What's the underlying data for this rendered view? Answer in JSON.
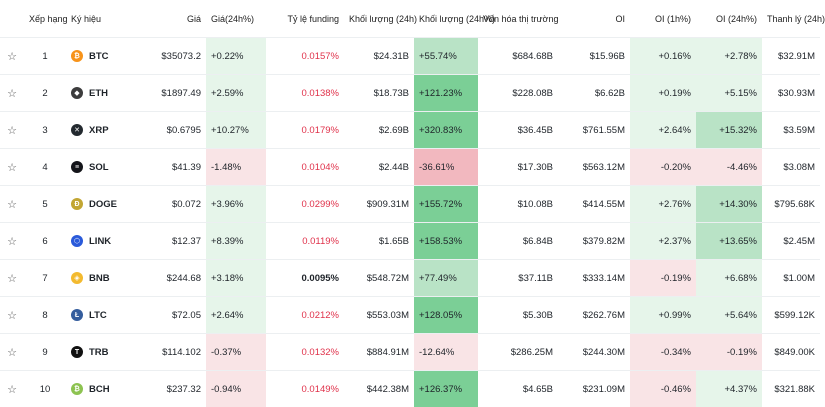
{
  "headers": {
    "star": "",
    "rank": "Xếp hạng",
    "symbol": "Ký hiệu",
    "price": "Giá",
    "price_change": "Giá(24h%)",
    "funding": "Tỷ lệ funding",
    "volume": "Khối lượng (24h)",
    "volume_change": "Khối lượng (24h%)",
    "market_cap": "Vốn hóa thị trường",
    "oi": "OI",
    "oi_1h": "OI (1h%)",
    "oi_24h": "OI (24h%)",
    "liquidation": "Thanh lý (24h)"
  },
  "colors": {
    "green_light": "#e6f5ea",
    "green_medium": "#b9e3c6",
    "green_strong": "#7bcf96",
    "red_light": "#f9e4e6",
    "red_strong": "#f2b8bf",
    "negative_text": "#e0324b"
  },
  "rows": [
    {
      "star": "☆",
      "rank": "1",
      "symbol": "BTC",
      "icon": "btc-icon",
      "icon_color": "#f7931a",
      "icon_glyph": "₿",
      "price": "$35073.2",
      "price_change": "+0.22%",
      "price_tone": "green_light",
      "funding": "0.0157%",
      "funding_tone": "red",
      "volume": "$24.31B",
      "volume_change": "+55.74%",
      "volume_tone": "green_medium",
      "market_cap": "$684.68B",
      "oi": "$15.96B",
      "oi_1h": "+0.16%",
      "oi_1h_tone": "green_light",
      "oi_24h": "+2.78%",
      "oi_24h_tone": "green_light",
      "liquidation": "$32.91M"
    },
    {
      "star": "☆",
      "rank": "2",
      "symbol": "ETH",
      "icon": "eth-icon",
      "icon_color": "#3c3c3d",
      "icon_glyph": "◆",
      "price": "$1897.49",
      "price_change": "+2.59%",
      "price_tone": "green_light",
      "funding": "0.0138%",
      "funding_tone": "red",
      "volume": "$18.73B",
      "volume_change": "+121.23%",
      "volume_tone": "green_strong",
      "market_cap": "$228.08B",
      "oi": "$6.62B",
      "oi_1h": "+0.19%",
      "oi_1h_tone": "green_light",
      "oi_24h": "+5.15%",
      "oi_24h_tone": "green_light",
      "liquidation": "$30.93M"
    },
    {
      "star": "☆",
      "rank": "3",
      "symbol": "XRP",
      "icon": "xrp-icon",
      "icon_color": "#23292f",
      "icon_glyph": "✕",
      "price": "$0.6795",
      "price_change": "+10.27%",
      "price_tone": "green_light",
      "funding": "0.0179%",
      "funding_tone": "red",
      "volume": "$2.69B",
      "volume_change": "+320.83%",
      "volume_tone": "green_strong",
      "market_cap": "$36.45B",
      "oi": "$761.55M",
      "oi_1h": "+2.64%",
      "oi_1h_tone": "green_light",
      "oi_24h": "+15.32%",
      "oi_24h_tone": "green_medium",
      "liquidation": "$3.59M"
    },
    {
      "star": "☆",
      "rank": "4",
      "symbol": "SOL",
      "icon": "sol-icon",
      "icon_color": "#14151a",
      "icon_glyph": "≡",
      "price": "$41.39",
      "price_change": "-1.48%",
      "price_tone": "red_light",
      "funding": "0.0104%",
      "funding_tone": "red",
      "volume": "$2.44B",
      "volume_change": "-36.61%",
      "volume_tone": "red_strong",
      "market_cap": "$17.30B",
      "oi": "$563.12M",
      "oi_1h": "-0.20%",
      "oi_1h_tone": "red_light",
      "oi_24h": "-4.46%",
      "oi_24h_tone": "red_light",
      "liquidation": "$3.08M"
    },
    {
      "star": "☆",
      "rank": "5",
      "symbol": "DOGE",
      "icon": "doge-icon",
      "icon_color": "#c2a633",
      "icon_glyph": "Ð",
      "price": "$0.072",
      "price_change": "+3.96%",
      "price_tone": "green_light",
      "funding": "0.0299%",
      "funding_tone": "red",
      "volume": "$909.31M",
      "volume_change": "+155.72%",
      "volume_tone": "green_strong",
      "market_cap": "$10.08B",
      "oi": "$414.55M",
      "oi_1h": "+2.76%",
      "oi_1h_tone": "green_light",
      "oi_24h": "+14.30%",
      "oi_24h_tone": "green_medium",
      "liquidation": "$795.68K"
    },
    {
      "star": "☆",
      "rank": "6",
      "symbol": "LINK",
      "icon": "link-icon",
      "icon_color": "#2a5ada",
      "icon_glyph": "⬡",
      "price": "$12.37",
      "price_change": "+8.39%",
      "price_tone": "green_light",
      "funding": "0.0119%",
      "funding_tone": "red",
      "volume": "$1.65B",
      "volume_change": "+158.53%",
      "volume_tone": "green_strong",
      "market_cap": "$6.84B",
      "oi": "$379.82M",
      "oi_1h": "+2.37%",
      "oi_1h_tone": "green_light",
      "oi_24h": "+13.65%",
      "oi_24h_tone": "green_medium",
      "liquidation": "$2.45M"
    },
    {
      "star": "☆",
      "rank": "7",
      "symbol": "BNB",
      "icon": "bnb-icon",
      "icon_color": "#f3ba2f",
      "icon_glyph": "◈",
      "price": "$244.68",
      "price_change": "+3.18%",
      "price_tone": "green_light",
      "funding": "0.0095%",
      "funding_tone": "black",
      "volume": "$548.72M",
      "volume_change": "+77.49%",
      "volume_tone": "green_medium",
      "market_cap": "$37.11B",
      "oi": "$333.14M",
      "oi_1h": "-0.19%",
      "oi_1h_tone": "red_light",
      "oi_24h": "+6.68%",
      "oi_24h_tone": "green_light",
      "liquidation": "$1.00M"
    },
    {
      "star": "☆",
      "rank": "8",
      "symbol": "LTC",
      "icon": "ltc-icon",
      "icon_color": "#345d9d",
      "icon_glyph": "Ł",
      "price": "$72.05",
      "price_change": "+2.64%",
      "price_tone": "green_light",
      "funding": "0.0212%",
      "funding_tone": "red",
      "volume": "$553.03M",
      "volume_change": "+128.05%",
      "volume_tone": "green_strong",
      "market_cap": "$5.30B",
      "oi": "$262.76M",
      "oi_1h": "+0.99%",
      "oi_1h_tone": "green_light",
      "oi_24h": "+5.64%",
      "oi_24h_tone": "green_light",
      "liquidation": "$599.12K"
    },
    {
      "star": "☆",
      "rank": "9",
      "symbol": "TRB",
      "icon": "trb-icon",
      "icon_color": "#111111",
      "icon_glyph": "T",
      "price": "$114.102",
      "price_change": "-0.37%",
      "price_tone": "red_light",
      "funding": "0.0132%",
      "funding_tone": "red",
      "volume": "$884.91M",
      "volume_change": "-12.64%",
      "volume_tone": "red_light",
      "market_cap": "$286.25M",
      "oi": "$244.30M",
      "oi_1h": "-0.34%",
      "oi_1h_tone": "red_light",
      "oi_24h": "-0.19%",
      "oi_24h_tone": "red_light",
      "liquidation": "$849.00K"
    },
    {
      "star": "☆",
      "rank": "10",
      "symbol": "BCH",
      "icon": "bch-icon",
      "icon_color": "#8dc351",
      "icon_glyph": "₿",
      "price": "$237.32",
      "price_change": "-0.94%",
      "price_tone": "red_light",
      "funding": "0.0149%",
      "funding_tone": "red",
      "volume": "$442.38M",
      "volume_change": "+126.37%",
      "volume_tone": "green_strong",
      "market_cap": "$4.65B",
      "oi": "$231.09M",
      "oi_1h": "-0.46%",
      "oi_1h_tone": "red_light",
      "oi_24h": "+4.37%",
      "oi_24h_tone": "green_light",
      "liquidation": "$321.88K"
    }
  ]
}
